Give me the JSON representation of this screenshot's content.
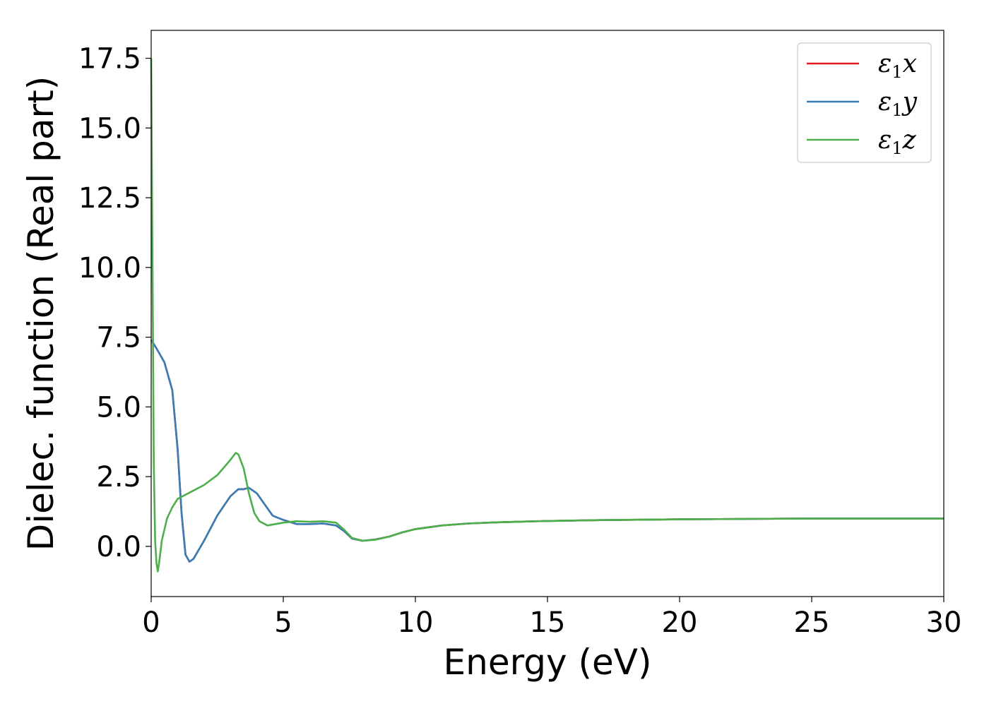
{
  "chart_data": {
    "type": "line",
    "xlabel": "Energy (eV)",
    "ylabel": "Dielec. function (Real part)",
    "xlim": [
      0,
      30
    ],
    "ylim": [
      -1.8,
      18.5
    ],
    "xticks": [
      "0",
      "5",
      "10",
      "15",
      "20",
      "25",
      "30"
    ],
    "yticks": [
      "0.0",
      "2.5",
      "5.0",
      "7.5",
      "10.0",
      "12.5",
      "15.0",
      "17.5"
    ],
    "grid": false,
    "legend_position": "top-right",
    "series": [
      {
        "name": "ε1x",
        "legend_base": "ε",
        "legend_sub": "1",
        "legend_var": "x",
        "color": "#e41a1c",
        "x": [
          0,
          0.2,
          0.5,
          0.8,
          1.0,
          1.15,
          1.3,
          1.45,
          1.6,
          2.0,
          2.5,
          3.0,
          3.3,
          3.5,
          3.7,
          4.0,
          4.3,
          4.6,
          5.0,
          5.5,
          6.0,
          6.5,
          7.0,
          7.3,
          7.6,
          8.0,
          8.5,
          9.0,
          9.5,
          10,
          11,
          12,
          13,
          15,
          17,
          20,
          25,
          30
        ],
        "y": [
          7.4,
          7.1,
          6.6,
          5.6,
          3.5,
          1.2,
          -0.3,
          -0.55,
          -0.45,
          0.2,
          1.1,
          1.8,
          2.05,
          2.05,
          2.1,
          1.9,
          1.5,
          1.1,
          0.95,
          0.8,
          0.8,
          0.82,
          0.75,
          0.55,
          0.28,
          0.2,
          0.25,
          0.35,
          0.5,
          0.62,
          0.75,
          0.82,
          0.86,
          0.91,
          0.94,
          0.97,
          1.0,
          1.0
        ]
      },
      {
        "name": "ε1y",
        "legend_base": "ε",
        "legend_sub": "1",
        "legend_var": "y",
        "color": "#377eb8",
        "x": [
          0,
          0.2,
          0.5,
          0.8,
          1.0,
          1.15,
          1.3,
          1.45,
          1.6,
          2.0,
          2.5,
          3.0,
          3.3,
          3.5,
          3.7,
          4.0,
          4.3,
          4.6,
          5.0,
          5.5,
          6.0,
          6.5,
          7.0,
          7.3,
          7.6,
          8.0,
          8.5,
          9.0,
          9.5,
          10,
          11,
          12,
          13,
          15,
          17,
          20,
          25,
          30
        ],
        "y": [
          7.4,
          7.1,
          6.6,
          5.6,
          3.5,
          1.2,
          -0.3,
          -0.55,
          -0.45,
          0.2,
          1.1,
          1.8,
          2.05,
          2.05,
          2.1,
          1.9,
          1.5,
          1.1,
          0.95,
          0.8,
          0.8,
          0.82,
          0.75,
          0.55,
          0.28,
          0.2,
          0.25,
          0.35,
          0.5,
          0.62,
          0.75,
          0.82,
          0.86,
          0.91,
          0.94,
          0.97,
          1.0,
          1.0
        ]
      },
      {
        "name": "ε1z",
        "legend_base": "ε",
        "legend_sub": "1",
        "legend_var": "z",
        "color": "#4daf4a",
        "x": [
          0,
          0.05,
          0.1,
          0.15,
          0.2,
          0.25,
          0.3,
          0.4,
          0.6,
          0.8,
          1.0,
          1.5,
          2.0,
          2.5,
          3.0,
          3.2,
          3.3,
          3.5,
          3.7,
          3.9,
          4.1,
          4.4,
          4.7,
          5.0,
          5.5,
          6.0,
          6.5,
          7.0,
          7.3,
          7.6,
          8.0,
          8.5,
          9.0,
          9.5,
          10,
          11,
          12,
          13,
          15,
          17,
          20,
          25,
          30
        ],
        "y": [
          17.5,
          10,
          3,
          0.2,
          -0.6,
          -0.9,
          -0.6,
          0.2,
          1.0,
          1.4,
          1.7,
          1.95,
          2.2,
          2.55,
          3.1,
          3.35,
          3.3,
          2.8,
          1.9,
          1.2,
          0.9,
          0.75,
          0.8,
          0.85,
          0.9,
          0.88,
          0.9,
          0.85,
          0.6,
          0.3,
          0.2,
          0.24,
          0.35,
          0.5,
          0.62,
          0.75,
          0.82,
          0.86,
          0.91,
          0.94,
          0.97,
          1.0,
          1.0
        ]
      }
    ]
  }
}
